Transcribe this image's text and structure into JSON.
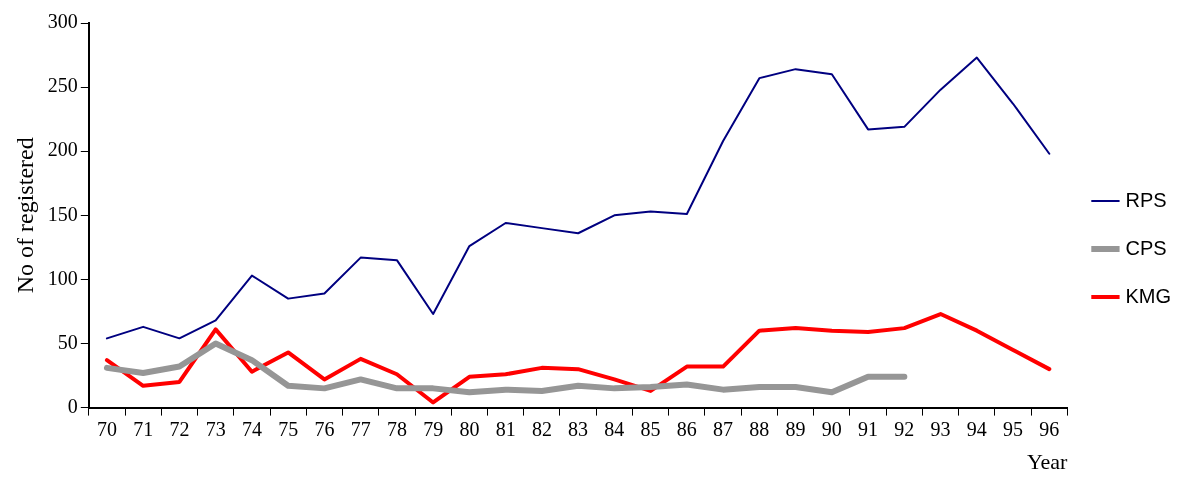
{
  "chart_data": {
    "type": "line",
    "xlabel": "Year",
    "ylabel": "No of registered",
    "categories": [
      "70",
      "71",
      "72",
      "73",
      "74",
      "75",
      "76",
      "77",
      "78",
      "79",
      "80",
      "81",
      "82",
      "83",
      "84",
      "85",
      "86",
      "87",
      "88",
      "89",
      "90",
      "91",
      "92",
      "93",
      "94",
      "95",
      "96"
    ],
    "ylim": [
      0,
      300
    ],
    "yticks": [
      0,
      50,
      100,
      150,
      200,
      250,
      300
    ],
    "grid": false,
    "legend": "right",
    "marker": "none",
    "line_style": "solid",
    "series": [
      {
        "name": "RPS",
        "color": "#000080",
        "values": [
          54,
          63,
          54,
          68,
          103,
          85,
          89,
          117,
          115,
          73,
          126,
          144,
          140,
          136,
          150,
          153,
          151,
          208,
          257,
          264,
          260,
          217,
          219,
          248,
          273,
          237,
          198
        ]
      },
      {
        "name": "CPS",
        "color": "#969696",
        "values": [
          31,
          27,
          32,
          50,
          37,
          17,
          15,
          22,
          15,
          15,
          12,
          14,
          13,
          17,
          15,
          16,
          18,
          14,
          16,
          16,
          12,
          24,
          24,
          null,
          null,
          null,
          null
        ]
      },
      {
        "name": "KMG",
        "color": "#ff0000",
        "values": [
          37,
          17,
          20,
          61,
          28,
          43,
          22,
          38,
          26,
          4,
          24,
          26,
          31,
          30,
          22,
          13,
          32,
          32,
          60,
          62,
          60,
          59,
          62,
          73,
          60,
          45,
          30
        ]
      }
    ]
  }
}
